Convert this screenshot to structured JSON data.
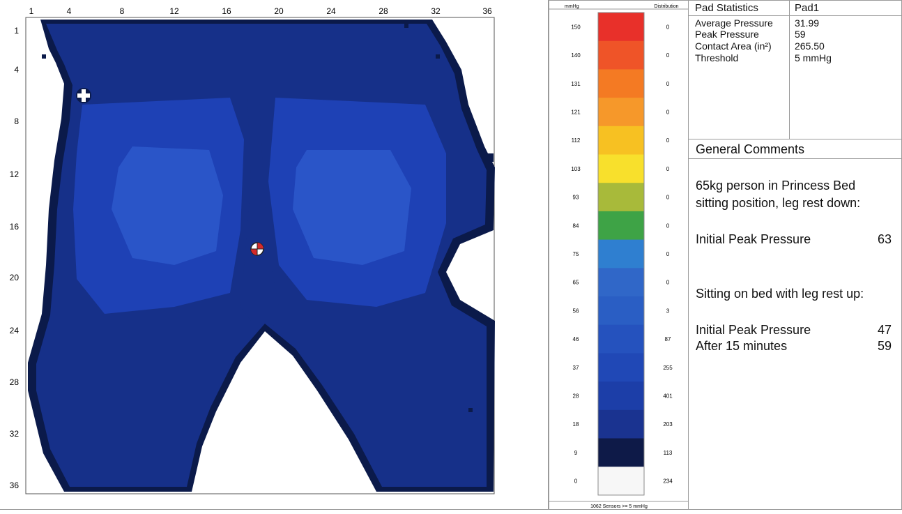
{
  "pressure_map": {
    "columns": [
      "1",
      "4",
      "8",
      "12",
      "16",
      "20",
      "24",
      "28",
      "32",
      "36"
    ],
    "rows": [
      "1",
      "4",
      "8",
      "12",
      "16",
      "20",
      "24",
      "28",
      "32",
      "36"
    ],
    "colors": {
      "outline": "#0b1a4a",
      "deep": "#163089",
      "mid": "#1e41b5",
      "light": "#2a55c8",
      "lighter": "#3866d2"
    }
  },
  "scale": {
    "unit_label": "mmHg",
    "distribution_label": "Distribution",
    "footer": "1062 Sensors >= 5 mmHg",
    "levels": [
      {
        "value": "150",
        "count": "0",
        "color": "#e8302a"
      },
      {
        "value": "140",
        "count": "0",
        "color": "#ef5428"
      },
      {
        "value": "131",
        "count": "0",
        "color": "#f47a23"
      },
      {
        "value": "121",
        "count": "0",
        "color": "#f6982a"
      },
      {
        "value": "112",
        "count": "0",
        "color": "#f7c122"
      },
      {
        "value": "103",
        "count": "0",
        "color": "#f8e02c"
      },
      {
        "value": "93",
        "count": "0",
        "color": "#a8ba3a"
      },
      {
        "value": "84",
        "count": "0",
        "color": "#3ea346"
      },
      {
        "value": "75",
        "count": "0",
        "color": "#2f7fd0"
      },
      {
        "value": "65",
        "count": "0",
        "color": "#3067c8"
      },
      {
        "value": "56",
        "count": "3",
        "color": "#2a5ec4"
      },
      {
        "value": "46",
        "count": "87",
        "color": "#2552be"
      },
      {
        "value": "37",
        "count": "255",
        "color": "#2048b6"
      },
      {
        "value": "28",
        "count": "401",
        "color": "#1c3ea8"
      },
      {
        "value": "18",
        "count": "203",
        "color": "#1a3390"
      },
      {
        "value": "9",
        "count": "113",
        "color": "#0e1a48"
      },
      {
        "value": "0",
        "count": "234",
        "color": "#f7f7f7"
      }
    ]
  },
  "stats": {
    "header_label": "Pad Statistics",
    "header_value": "Pad1",
    "rows": [
      {
        "label": "Average Pressure",
        "value": "31.99"
      },
      {
        "label": "Peak Pressure",
        "value": "59"
      },
      {
        "label": "Contact Area (in²)",
        "value": "265.50"
      },
      {
        "label": "Threshold",
        "value": "5 mmHg"
      }
    ]
  },
  "comments": {
    "title": "General Comments",
    "line1": "65kg person in Princess Bed",
    "line2": "sitting position, leg rest down:",
    "initial_peak_label": "Initial Peak Pressure",
    "initial_peak_value": "63",
    "line3": "Sitting on bed with leg rest up:",
    "initial_peak_label_2": "Initial Peak Pressure",
    "initial_peak_value_2": "47",
    "after_label": "After 15 minutes",
    "after_value": "59"
  }
}
